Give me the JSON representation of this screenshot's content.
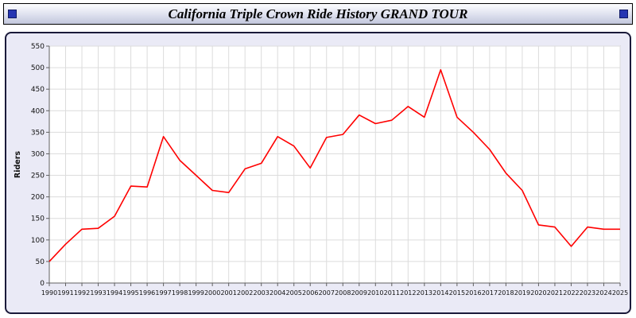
{
  "header": {
    "title": "California Triple Crown Ride History GRAND TOUR"
  },
  "chart_data": {
    "type": "line",
    "title": "California Triple Crown Ride History GRAND TOUR",
    "x": [
      1990,
      1991,
      1992,
      1993,
      1994,
      1995,
      1996,
      1997,
      1998,
      1999,
      2000,
      2001,
      2002,
      2003,
      2004,
      2005,
      2006,
      2007,
      2008,
      2009,
      2010,
      2011,
      2012,
      2013,
      2014,
      2015,
      2016,
      2017,
      2018,
      2019,
      2020,
      2021,
      2022,
      2023,
      2024,
      2025
    ],
    "series": [
      {
        "name": "Riders",
        "color": "#ff0000",
        "values": [
          50,
          90,
          125,
          127,
          155,
          225,
          223,
          340,
          285,
          250,
          215,
          210,
          265,
          278,
          340,
          318,
          267,
          338,
          345,
          390,
          370,
          378,
          410,
          385,
          495,
          385,
          350,
          310,
          255,
          215,
          135,
          130,
          85,
          130,
          125,
          125
        ]
      }
    ],
    "xlabel": "",
    "ylabel": "Riders",
    "ylim": [
      0,
      550
    ],
    "ytick_step": 50,
    "grid": true,
    "legend_position": "none"
  }
}
